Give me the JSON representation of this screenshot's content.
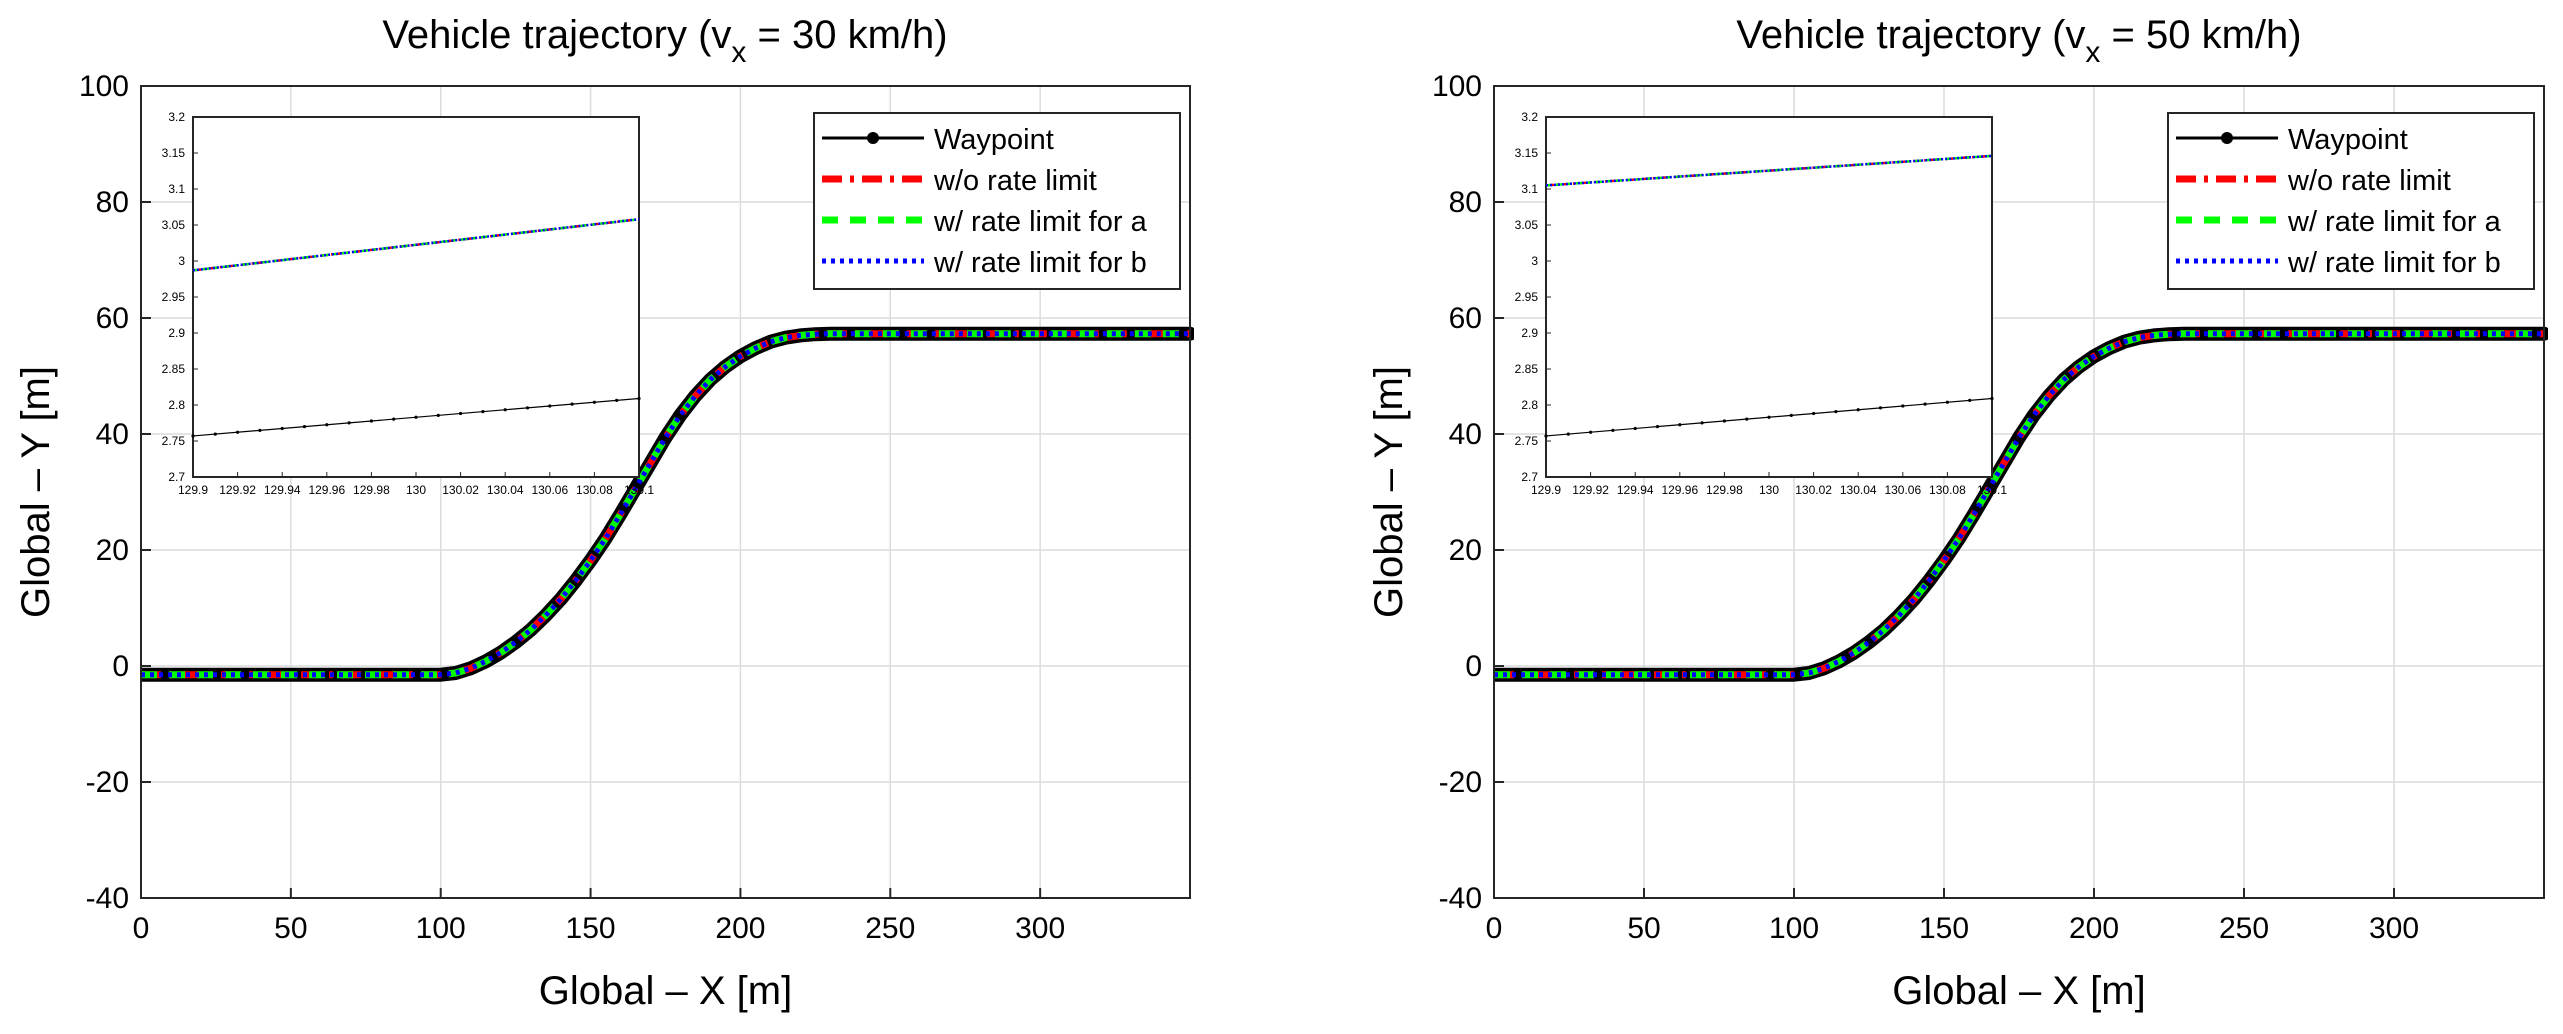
{
  "chart_data": [
    {
      "type": "line",
      "title": "Vehicle trajectory (v",
      "title_sub": "x",
      "title_rest": " = 30 km/h)",
      "xlabel": "Global – X [m]",
      "ylabel": "Global – Y [m]",
      "xlim": [
        0,
        350
      ],
      "ylim": [
        -40,
        100
      ],
      "xticks": [
        0,
        50,
        100,
        150,
        200,
        250,
        300
      ],
      "yticks": [
        -40,
        -20,
        0,
        20,
        40,
        60,
        80,
        100
      ],
      "grid": true,
      "legend_location": "top-right",
      "path": {
        "x": [
          0,
          20,
          40,
          60,
          80,
          100,
          105,
          110,
          115,
          120,
          125,
          130,
          135,
          140,
          145,
          150,
          155,
          160,
          165,
          170,
          175,
          180,
          185,
          190,
          195,
          200,
          205,
          210,
          215,
          220,
          225,
          230,
          235,
          240,
          260,
          280,
          300,
          320,
          350
        ],
        "y": [
          -1.5,
          -1.5,
          -1.5,
          -1.5,
          -1.5,
          -1.5,
          -1.2,
          -0.4,
          0.8,
          2.3,
          4.1,
          6.2,
          8.7,
          11.5,
          14.7,
          18.2,
          22.0,
          26.2,
          30.6,
          35.0,
          39.4,
          43.3,
          46.6,
          49.4,
          51.6,
          53.4,
          54.8,
          55.9,
          56.6,
          57.0,
          57.2,
          57.3,
          57.3,
          57.3,
          57.3,
          57.3,
          57.3,
          57.3,
          57.3
        ]
      },
      "series": [
        {
          "name": "Waypoint",
          "color": "#000000",
          "style": "solid-marker"
        },
        {
          "name": "w/o rate limit",
          "color": "#ff0000",
          "style": "dashdot"
        },
        {
          "name": "w/ rate limit for a",
          "color": "#00ff00",
          "style": "dashed"
        },
        {
          "name": "w/ rate limit for b",
          "color": "#0000ff",
          "style": "dotted"
        }
      ],
      "inset": {
        "xlim": [
          129.9,
          130.1
        ],
        "ylim": [
          2.7,
          3.2
        ],
        "xticks": [
          129.9,
          129.92,
          129.94,
          129.96,
          129.98,
          130,
          130.02,
          130.04,
          130.06,
          130.08,
          130.1
        ],
        "xtick_labels": [
          "129.9",
          "129.92",
          "129.94",
          "129.96",
          "129.98",
          "130",
          "130.02",
          "130.04",
          "130.06",
          "130.08",
          "130.1"
        ],
        "yticks": [
          2.7,
          2.75,
          2.8,
          2.85,
          2.9,
          2.95,
          3,
          3.05,
          3.1,
          3.15,
          3.2
        ],
        "ytick_labels": [
          "2.7",
          "2.75",
          "2.8",
          "2.85",
          "2.9",
          "2.95",
          "3",
          "3.05",
          "3.1",
          "3.15",
          "3.2"
        ],
        "waypoint_line": {
          "x": [
            129.9,
            130.1
          ],
          "y": [
            2.757,
            2.809
          ]
        },
        "vehicle_line": {
          "x": [
            129.9,
            130.1
          ],
          "y": [
            2.987,
            3.058
          ]
        }
      }
    },
    {
      "type": "line",
      "title": "Vehicle trajectory (v",
      "title_sub": "x",
      "title_rest": " = 50 km/h)",
      "xlabel": "Global – X [m]",
      "ylabel": "Global – Y [m]",
      "xlim": [
        0,
        350
      ],
      "ylim": [
        -40,
        100
      ],
      "xticks": [
        0,
        50,
        100,
        150,
        200,
        250,
        300
      ],
      "yticks": [
        -40,
        -20,
        0,
        20,
        40,
        60,
        80,
        100
      ],
      "grid": true,
      "legend_location": "top-right",
      "path": {
        "x": [
          0,
          20,
          40,
          60,
          80,
          100,
          105,
          110,
          115,
          120,
          125,
          130,
          135,
          140,
          145,
          150,
          155,
          160,
          165,
          170,
          175,
          180,
          185,
          190,
          195,
          200,
          205,
          210,
          215,
          220,
          225,
          230,
          235,
          240,
          260,
          280,
          300,
          320,
          350
        ],
        "y": [
          -1.5,
          -1.5,
          -1.5,
          -1.5,
          -1.5,
          -1.5,
          -1.2,
          -0.4,
          0.8,
          2.3,
          4.1,
          6.2,
          8.7,
          11.5,
          14.7,
          18.2,
          22.0,
          26.2,
          30.6,
          35.0,
          39.4,
          43.3,
          46.6,
          49.4,
          51.6,
          53.4,
          54.8,
          55.9,
          56.6,
          57.0,
          57.2,
          57.3,
          57.3,
          57.3,
          57.3,
          57.3,
          57.3,
          57.3,
          57.3
        ]
      },
      "series": [
        {
          "name": "Waypoint",
          "color": "#000000",
          "style": "solid-marker"
        },
        {
          "name": "w/o rate limit",
          "color": "#ff0000",
          "style": "dashdot"
        },
        {
          "name": "w/ rate limit for a",
          "color": "#00ff00",
          "style": "dashed"
        },
        {
          "name": "w/ rate limit for b",
          "color": "#0000ff",
          "style": "dotted"
        }
      ],
      "inset": {
        "xlim": [
          129.9,
          130.1
        ],
        "ylim": [
          2.7,
          3.2
        ],
        "xticks": [
          129.9,
          129.92,
          129.94,
          129.96,
          129.98,
          130,
          130.02,
          130.04,
          130.06,
          130.08,
          130.1
        ],
        "xtick_labels": [
          "129.9",
          "129.92",
          "129.94",
          "129.96",
          "129.98",
          "130",
          "130.02",
          "130.04",
          "130.06",
          "130.08",
          "130.1"
        ],
        "yticks": [
          2.7,
          2.75,
          2.8,
          2.85,
          2.9,
          2.95,
          3,
          3.05,
          3.1,
          3.15,
          3.2
        ],
        "ytick_labels": [
          "2.7",
          "2.75",
          "2.8",
          "2.85",
          "2.9",
          "2.95",
          "3",
          "3.05",
          "3.1",
          "3.15",
          "3.2"
        ],
        "waypoint_line": {
          "x": [
            129.9,
            130.1
          ],
          "y": [
            2.757,
            2.809
          ]
        },
        "vehicle_line": {
          "x": [
            129.9,
            130.1
          ],
          "y": [
            3.105,
            3.146
          ]
        }
      }
    }
  ]
}
